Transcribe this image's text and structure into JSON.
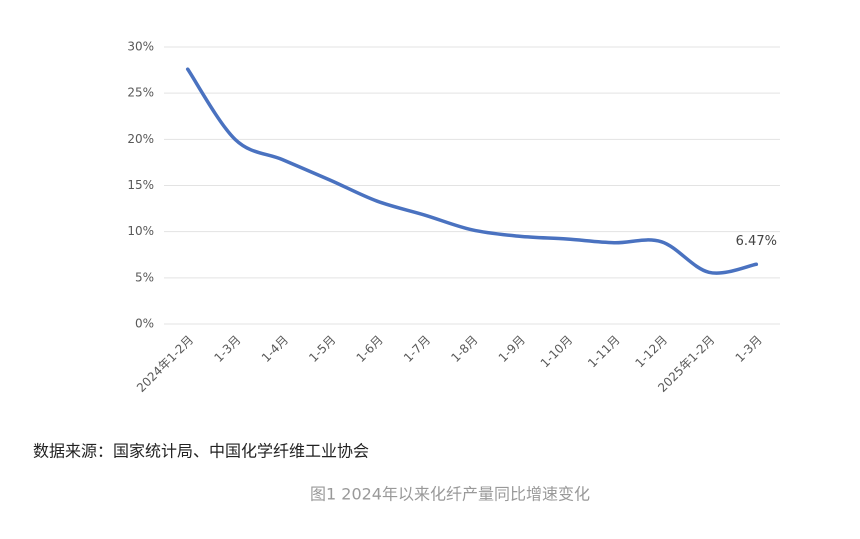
{
  "chart_data": {
    "type": "line",
    "categories": [
      "2024年1-2月",
      "1-3月",
      "1-4月",
      "1-5月",
      "1-6月",
      "1-7月",
      "1-8月",
      "1-9月",
      "1-10月",
      "1-11月",
      "1-12月",
      "2025年1-2月",
      "1-3月"
    ],
    "series": [
      {
        "color": "#4a72c0",
        "values": [
          27.6,
          20.0,
          17.8,
          15.6,
          13.3,
          11.8,
          10.2,
          9.5,
          9.2,
          8.8,
          8.9,
          5.6,
          6.47
        ],
        "value_labels": [
          null,
          null,
          null,
          null,
          null,
          null,
          null,
          null,
          null,
          null,
          null,
          null,
          "6.47%"
        ]
      }
    ],
    "ylim": [
      0,
      30
    ],
    "yticks": [
      {
        "value": 0,
        "label": "0%"
      },
      {
        "value": 5,
        "label": "5%"
      },
      {
        "value": 10,
        "label": "10%"
      },
      {
        "value": 15,
        "label": "15%"
      },
      {
        "value": 20,
        "label": "20%"
      },
      {
        "value": 25,
        "label": "25%"
      },
      {
        "value": 30,
        "label": "30%"
      }
    ],
    "grid": true,
    "source": "数据来源：国家统计局、中国化学纤维工业协会",
    "caption": "图1  2024年以来化纤产量同比增速变化"
  }
}
